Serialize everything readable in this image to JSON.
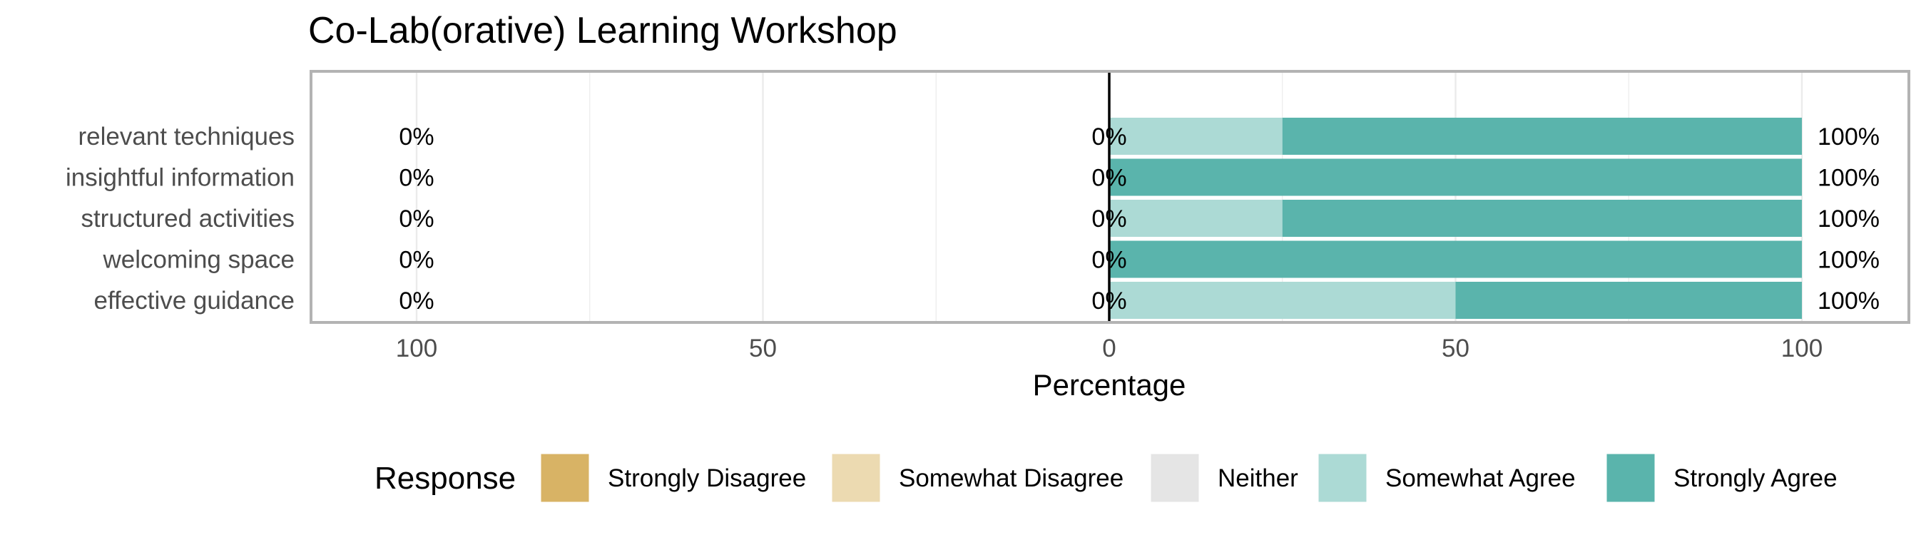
{
  "chart_data": {
    "type": "bar",
    "subtype": "diverging-stacked-likert",
    "title": "Co-Lab(orative) Learning Workshop",
    "xlabel": "Percentage",
    "ylabel": "",
    "xlim": [
      -100,
      100
    ],
    "x_ticks": [
      -100,
      -50,
      0,
      50,
      100
    ],
    "x_tick_labels": [
      "100",
      "50",
      "0",
      "50",
      "100"
    ],
    "grid": true,
    "legend_title": "Response",
    "legend_position": "bottom",
    "categories": [
      "relevant techniques",
      "insightful information",
      "structured activities",
      "welcoming space",
      "effective guidance"
    ],
    "series": [
      {
        "name": "Strongly Disagree",
        "color": "#d8b365",
        "values": [
          0,
          0,
          0,
          0,
          0
        ]
      },
      {
        "name": "Somewhat Disagree",
        "color": "#ecdab1",
        "values": [
          0,
          0,
          0,
          0,
          0
        ]
      },
      {
        "name": "Neither",
        "color": "#e5e5e5",
        "values": [
          0,
          0,
          0,
          0,
          0
        ]
      },
      {
        "name": "Somewhat Agree",
        "color": "#acdad5",
        "values": [
          25,
          0,
          25,
          0,
          50
        ]
      },
      {
        "name": "Strongly Agree",
        "color": "#5ab4ac",
        "values": [
          75,
          100,
          75,
          100,
          50
        ]
      }
    ],
    "left_labels": [
      "0%",
      "0%",
      "0%",
      "0%",
      "0%"
    ],
    "center_labels": [
      "0%",
      "0%",
      "0%",
      "0%",
      "0%"
    ],
    "right_labels": [
      "100%",
      "100%",
      "100%",
      "100%",
      "100%"
    ]
  }
}
